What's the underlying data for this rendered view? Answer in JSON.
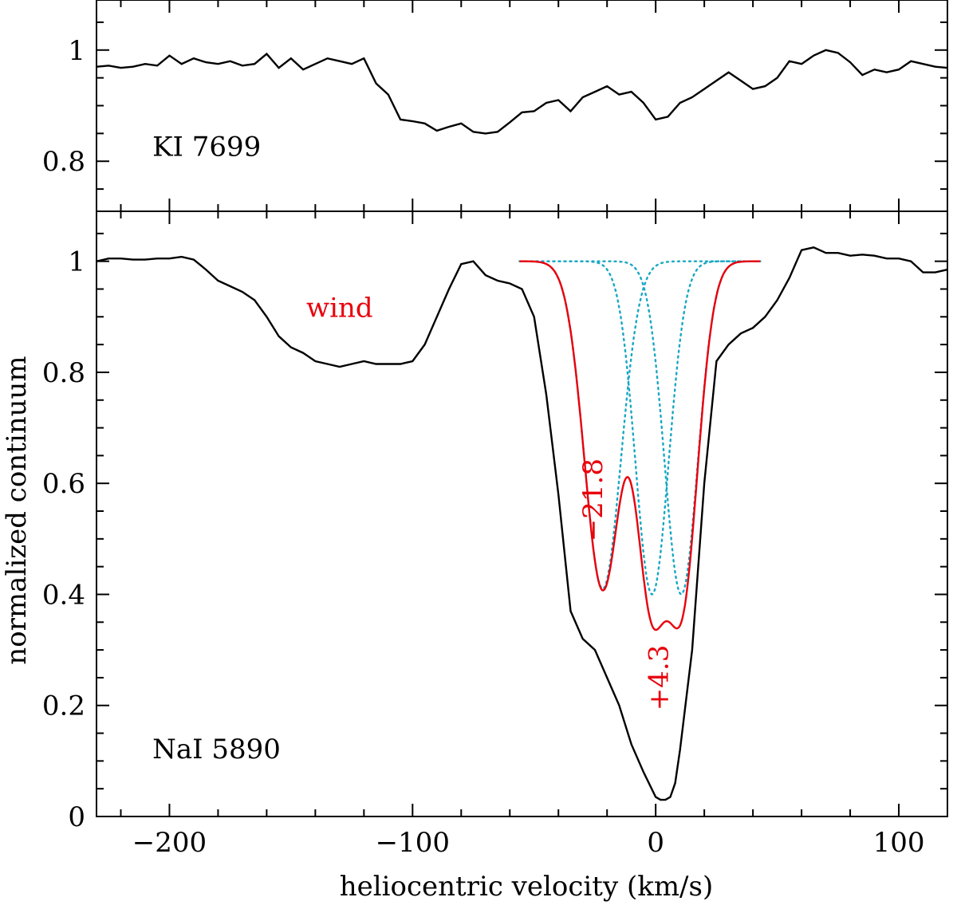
{
  "chart_data": [
    {
      "type": "line",
      "panel": "top",
      "label": "KI 7699",
      "xlabel": "",
      "ylabel": "",
      "xlim": [
        -230,
        120
      ],
      "ylim": [
        0.71,
        1.09
      ],
      "y_ticks": [
        0.8,
        1
      ],
      "y_tick_labels": [
        "0.8",
        "1"
      ],
      "series": [
        {
          "color": "#000000",
          "x": [
            -230,
            -225,
            -220,
            -215,
            -210,
            -205,
            -200,
            -195,
            -190,
            -185,
            -180,
            -175,
            -170,
            -165,
            -160,
            -155,
            -150,
            -145,
            -140,
            -135,
            -130,
            -125,
            -120,
            -115,
            -110,
            -105,
            -100,
            -95,
            -90,
            -85,
            -80,
            -75,
            -70,
            -65,
            -60,
            -55,
            -50,
            -45,
            -40,
            -35,
            -30,
            -25,
            -20,
            -15,
            -10,
            -5,
            0,
            5,
            10,
            15,
            20,
            25,
            30,
            35,
            40,
            45,
            50,
            55,
            60,
            65,
            70,
            75,
            80,
            85,
            90,
            95,
            100,
            105,
            110,
            115,
            120
          ],
          "y": [
            0.97,
            0.972,
            0.968,
            0.97,
            0.975,
            0.972,
            0.99,
            0.975,
            0.985,
            0.978,
            0.975,
            0.98,
            0.972,
            0.975,
            0.993,
            0.968,
            0.985,
            0.965,
            0.975,
            0.985,
            0.98,
            0.975,
            0.985,
            0.94,
            0.92,
            0.875,
            0.872,
            0.868,
            0.855,
            0.862,
            0.868,
            0.853,
            0.85,
            0.853,
            0.87,
            0.888,
            0.89,
            0.905,
            0.91,
            0.89,
            0.915,
            0.925,
            0.935,
            0.92,
            0.925,
            0.905,
            0.875,
            0.88,
            0.905,
            0.915,
            0.93,
            0.945,
            0.96,
            0.945,
            0.93,
            0.935,
            0.95,
            0.98,
            0.975,
            0.99,
            1.0,
            0.995,
            0.978,
            0.955,
            0.965,
            0.96,
            0.965,
            0.98,
            0.975,
            0.97,
            0.968
          ]
        }
      ]
    },
    {
      "type": "line",
      "panel": "bottom",
      "label": "NaI 5890",
      "xlabel": "heliocentric velocity (km/s)",
      "ylabel": "normalized continuum",
      "xlim": [
        -230,
        120
      ],
      "ylim": [
        0,
        1.09
      ],
      "x_ticks": [
        -200,
        -100,
        0,
        100
      ],
      "x_tick_labels": [
        "−200",
        "−100",
        "0",
        "100"
      ],
      "y_ticks": [
        0,
        0.2,
        0.4,
        0.6,
        0.8,
        1
      ],
      "y_tick_labels": [
        "0",
        "0.2",
        "0.4",
        "0.6",
        "0.8",
        "1"
      ],
      "series": [
        {
          "color": "#000000",
          "style": "solid",
          "x": [
            -230,
            -225,
            -220,
            -215,
            -210,
            -205,
            -200,
            -195,
            -190,
            -185,
            -180,
            -175,
            -170,
            -165,
            -160,
            -155,
            -150,
            -145,
            -140,
            -135,
            -130,
            -125,
            -120,
            -115,
            -110,
            -105,
            -100,
            -95,
            -90,
            -85,
            -80,
            -75,
            -70,
            -65,
            -60,
            -55,
            -50,
            -45,
            -40,
            -35,
            -30,
            -25,
            -20,
            -15,
            -10,
            -5,
            0,
            2,
            4,
            6,
            8,
            10,
            15,
            20,
            25,
            30,
            35,
            40,
            45,
            50,
            55,
            60,
            65,
            70,
            75,
            80,
            85,
            90,
            95,
            100,
            105,
            110,
            115,
            120
          ],
          "y": [
            1.0,
            1.005,
            1.005,
            1.003,
            1.003,
            1.005,
            1.005,
            1.008,
            1.003,
            0.985,
            0.965,
            0.955,
            0.945,
            0.93,
            0.9,
            0.865,
            0.845,
            0.835,
            0.82,
            0.815,
            0.81,
            0.815,
            0.82,
            0.815,
            0.815,
            0.815,
            0.82,
            0.85,
            0.9,
            0.95,
            0.995,
            1.0,
            0.975,
            0.965,
            0.96,
            0.95,
            0.9,
            0.76,
            0.58,
            0.37,
            0.32,
            0.3,
            0.25,
            0.2,
            0.13,
            0.08,
            0.035,
            0.03,
            0.03,
            0.035,
            0.06,
            0.12,
            0.3,
            0.6,
            0.82,
            0.85,
            0.87,
            0.88,
            0.9,
            0.93,
            0.97,
            1.02,
            1.025,
            1.015,
            1.015,
            1.01,
            1.012,
            1.01,
            1.005,
            1.005,
            1.0,
            0.98,
            0.98,
            0.985
          ]
        },
        {
          "name": "",
          "color": "#e8000b",
          "style": "solid",
          "role": "fit"
        },
        {
          "color": "#17a7c4",
          "style": "dotted",
          "role": "component",
          "center": -21.8,
          "depth": 0.59,
          "sigma": 7.5
        },
        {
          "color": "#17a7c4",
          "style": "dotted",
          "role": "component",
          "center": -1.5,
          "depth": 0.6,
          "sigma": 6.8
        },
        {
          "color": "#17a7c4",
          "style": "dotted",
          "role": "component",
          "center": 10.5,
          "depth": 0.6,
          "sigma": 6.8
        }
      ],
      "component_range": [
        -56,
        43
      ],
      "annotations": [
        {
          "text": "wind",
          "x": -130,
          "y": 0.9,
          "color": "#e8000b",
          "rotate": 0
        },
        {
          "text": "−21.8",
          "x": -22,
          "y": 0.57,
          "color": "#e8000b",
          "rotate": -90
        },
        {
          "text": "+4.3",
          "x": 5,
          "y": 0.25,
          "color": "#e8000b",
          "rotate": -90
        }
      ]
    }
  ]
}
